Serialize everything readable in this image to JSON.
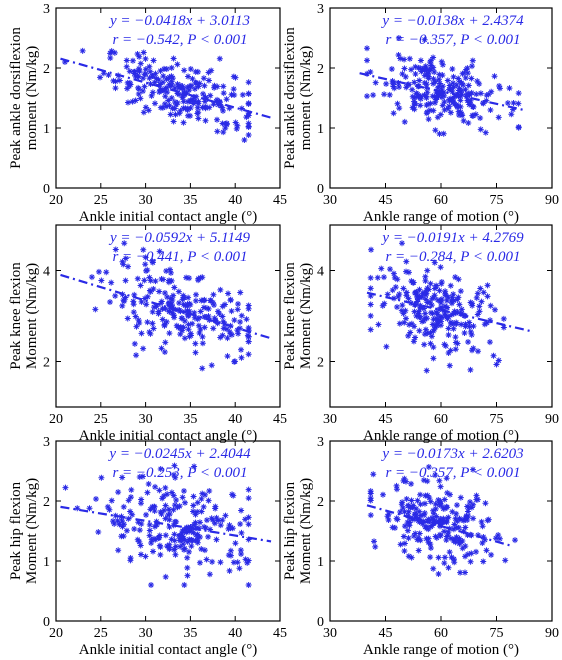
{
  "colors": {
    "series": "#2a2ae6",
    "axes": "#000000",
    "background": "#ffffff"
  },
  "chart_data": [
    {
      "type": "scatter",
      "xlabel": "Ankle initial contact angle (°)",
      "ylabel": [
        "Peak ankle dorsiflexion",
        "moment (Nm/kg)"
      ],
      "xlim": [
        20,
        45
      ],
      "ylim": [
        0,
        3
      ],
      "xticks": [
        "20",
        "25",
        "30",
        "35",
        "40",
        "45"
      ],
      "yticks": [
        "0",
        "1",
        "2",
        "3"
      ],
      "equation": "y = −0.0418x + 3.0113",
      "stats": "r = −0.542, P < 0.001",
      "fit": {
        "slope": -0.0418,
        "intercept": 3.0113,
        "x_range": [
          20.5,
          44
        ]
      },
      "scatter": {
        "n": 230,
        "x_mean": 34,
        "x_sd": 4.3,
        "x_range": [
          21,
          41.5
        ],
        "resid_sd": 0.25,
        "y_range": [
          0.8,
          2.65
        ]
      }
    },
    {
      "type": "scatter",
      "xlabel": "Ankle range of motion (°)",
      "ylabel": [
        "Peak ankle dorsiflexion",
        "moment (Nm/kg)"
      ],
      "xlim": [
        30,
        90
      ],
      "ylim": [
        0,
        3
      ],
      "xticks": [
        "30",
        "45",
        "60",
        "75",
        "90"
      ],
      "yticks": [
        "0",
        "1",
        "2",
        "3"
      ],
      "equation": "y = −0.0138x + 2.4374",
      "stats": "r = −0.357, P < 0.001",
      "fit": {
        "slope": -0.0138,
        "intercept": 2.4374,
        "x_range": [
          38,
          83
        ]
      },
      "scatter": {
        "n": 230,
        "x_mean": 59,
        "x_sd": 8.5,
        "x_range": [
          40,
          81
        ],
        "resid_sd": 0.27,
        "y_range": [
          0.85,
          2.6
        ]
      }
    },
    {
      "type": "scatter",
      "xlabel": "Ankle initial contact angle (°)",
      "ylabel": [
        "Peak knee flexion",
        "Moment (Nm/kg)"
      ],
      "xlim": [
        20,
        45
      ],
      "ylim": [
        1,
        5
      ],
      "xticks": [
        "20",
        "25",
        "30",
        "35",
        "40",
        "45"
      ],
      "yticks": [
        "2",
        "4"
      ],
      "equation": "y = −0.0592x + 5.1149",
      "stats": "r = −0.441, P < 0.001",
      "fit": {
        "slope": -0.0592,
        "intercept": 5.1149,
        "x_range": [
          20.5,
          44
        ]
      },
      "scatter": {
        "n": 230,
        "x_mean": 34,
        "x_sd": 4.3,
        "x_range": [
          21,
          41.5
        ],
        "resid_sd": 0.42,
        "y_range": [
          1.8,
          4.6
        ]
      }
    },
    {
      "type": "scatter",
      "xlabel": "Ankle range of motion (°)",
      "ylabel": [
        "Peak knee flexion",
        "Moment (Nm/kg)"
      ],
      "xlim": [
        30,
        90
      ],
      "ylim": [
        1,
        5
      ],
      "xticks": [
        "30",
        "45",
        "60",
        "75",
        "90"
      ],
      "yticks": [
        "2",
        "4"
      ],
      "equation": "y = −0.0191x + 4.2769",
      "stats": "r = −0.284, P < 0.001",
      "fit": {
        "slope": -0.0191,
        "intercept": 4.2769,
        "x_range": [
          40,
          84
        ]
      },
      "scatter": {
        "n": 230,
        "x_mean": 59,
        "x_sd": 8.5,
        "x_range": [
          41,
          80
        ],
        "resid_sd": 0.45,
        "y_range": [
          1.8,
          4.6
        ]
      }
    },
    {
      "type": "scatter",
      "xlabel": "Ankle initial contact angle (°)",
      "ylabel": [
        "Peak hip flexion",
        "Moment (Nm/kg)"
      ],
      "xlim": [
        20,
        45
      ],
      "ylim": [
        0,
        3
      ],
      "xticks": [
        "20",
        "25",
        "30",
        "35",
        "40",
        "45"
      ],
      "yticks": [
        "0",
        "1",
        "2",
        "3"
      ],
      "equation": "y = −0.0245x + 2.4044",
      "stats": "r = −0.253, P < 0.001",
      "fit": {
        "slope": -0.0245,
        "intercept": 2.4044,
        "x_range": [
          20.5,
          44
        ]
      },
      "scatter": {
        "n": 230,
        "x_mean": 34,
        "x_sd": 4.3,
        "x_range": [
          21,
          41.5
        ],
        "resid_sd": 0.38,
        "y_range": [
          0.6,
          2.6
        ]
      }
    },
    {
      "type": "scatter",
      "xlabel": "Ankle range of motion (°)",
      "ylabel": [
        "Peak hip flexion",
        "Moment (Nm/kg)"
      ],
      "xlim": [
        30,
        90
      ],
      "ylim": [
        0,
        3
      ],
      "xticks": [
        "30",
        "45",
        "60",
        "75",
        "90"
      ],
      "yticks": [
        "0",
        "1",
        "2",
        "3"
      ],
      "equation": "y = −0.0173x + 2.6203",
      "stats": "r = −0.357, P < 0.001",
      "fit": {
        "slope": -0.0173,
        "intercept": 2.6203,
        "x_range": [
          40,
          79
        ]
      },
      "scatter": {
        "n": 230,
        "x_mean": 59,
        "x_sd": 8.0,
        "x_range": [
          41,
          80
        ],
        "resid_sd": 0.33,
        "y_range": [
          0.6,
          2.6
        ]
      }
    }
  ]
}
